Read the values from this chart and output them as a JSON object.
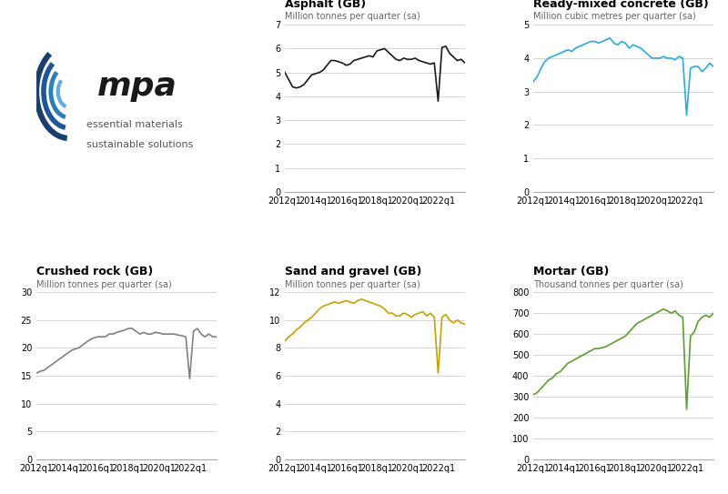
{
  "asphalt": {
    "title": "Asphalt (GB)",
    "ylabel": "Million tonnes per quarter (sa)",
    "color": "#1a1a1a",
    "ylim": [
      0,
      7
    ],
    "yticks": [
      0,
      1,
      2,
      3,
      4,
      5,
      6,
      7
    ],
    "values": [
      5.0,
      4.7,
      4.4,
      4.35,
      4.4,
      4.5,
      4.7,
      4.9,
      4.95,
      5.0,
      5.1,
      5.3,
      5.5,
      5.5,
      5.45,
      5.4,
      5.3,
      5.35,
      5.5,
      5.55,
      5.6,
      5.65,
      5.7,
      5.65,
      5.9,
      5.95,
      6.0,
      5.85,
      5.7,
      5.55,
      5.5,
      5.6,
      5.55,
      5.55,
      5.6,
      5.5,
      5.45,
      5.4,
      5.35,
      5.4,
      3.8,
      6.05,
      6.1,
      5.8,
      5.65,
      5.5,
      5.55,
      5.4
    ]
  },
  "concrete": {
    "title": "Ready-mixed concrete (GB)",
    "ylabel": "Million cubic metres per quarter (sa)",
    "color": "#29abe2",
    "ylim": [
      0,
      5
    ],
    "yticks": [
      0,
      1,
      2,
      3,
      4,
      5
    ],
    "values": [
      3.3,
      3.45,
      3.7,
      3.9,
      4.0,
      4.05,
      4.1,
      4.15,
      4.2,
      4.25,
      4.2,
      4.3,
      4.35,
      4.4,
      4.45,
      4.5,
      4.5,
      4.45,
      4.5,
      4.55,
      4.6,
      4.45,
      4.4,
      4.5,
      4.45,
      4.3,
      4.4,
      4.35,
      4.3,
      4.2,
      4.1,
      4.0,
      4.0,
      4.0,
      4.05,
      4.0,
      4.0,
      3.95,
      4.05,
      4.0,
      2.3,
      3.7,
      3.75,
      3.75,
      3.6,
      3.7,
      3.85,
      3.75
    ]
  },
  "crushed_rock": {
    "title": "Crushed rock (GB)",
    "ylabel": "Million tonnes per quarter (sa)",
    "color": "#808080",
    "ylim": [
      0,
      30
    ],
    "yticks": [
      0,
      5,
      10,
      15,
      20,
      25,
      30
    ],
    "values": [
      15.5,
      15.8,
      16.0,
      16.5,
      17.0,
      17.5,
      18.0,
      18.5,
      19.0,
      19.5,
      19.8,
      20.0,
      20.5,
      21.0,
      21.5,
      21.8,
      22.0,
      22.0,
      22.0,
      22.5,
      22.5,
      22.8,
      23.0,
      23.2,
      23.5,
      23.5,
      23.0,
      22.5,
      22.8,
      22.5,
      22.5,
      22.8,
      22.7,
      22.5,
      22.5,
      22.5,
      22.5,
      22.3,
      22.2,
      22.0,
      14.5,
      23.0,
      23.5,
      22.5,
      22.0,
      22.5,
      22.0,
      22.0
    ]
  },
  "sand_gravel": {
    "title": "Sand and gravel (GB)",
    "ylabel": "Million tonnes per quarter (sa)",
    "color": "#c8a000",
    "ylim": [
      0,
      12
    ],
    "yticks": [
      0,
      2,
      4,
      6,
      8,
      10,
      12
    ],
    "values": [
      8.5,
      8.8,
      9.0,
      9.3,
      9.5,
      9.8,
      10.0,
      10.2,
      10.5,
      10.8,
      11.0,
      11.1,
      11.2,
      11.3,
      11.2,
      11.3,
      11.4,
      11.3,
      11.2,
      11.4,
      11.5,
      11.4,
      11.3,
      11.2,
      11.1,
      11.0,
      10.8,
      10.5,
      10.5,
      10.3,
      10.3,
      10.5,
      10.4,
      10.2,
      10.4,
      10.5,
      10.6,
      10.3,
      10.5,
      10.2,
      6.2,
      10.2,
      10.4,
      10.0,
      9.8,
      10.0,
      9.8,
      9.7
    ]
  },
  "mortar": {
    "title": "Mortar (GB)",
    "ylabel": "Thousand tonnes per quarter (sa)",
    "color": "#5a9e2f",
    "ylim": [
      0,
      800
    ],
    "yticks": [
      0,
      100,
      200,
      300,
      400,
      500,
      600,
      700,
      800
    ],
    "values": [
      310,
      320,
      340,
      360,
      380,
      390,
      410,
      420,
      440,
      460,
      470,
      480,
      490,
      500,
      510,
      520,
      530,
      530,
      535,
      540,
      550,
      560,
      570,
      580,
      590,
      610,
      630,
      650,
      660,
      670,
      680,
      690,
      700,
      710,
      720,
      710,
      700,
      710,
      690,
      680,
      240,
      590,
      610,
      660,
      680,
      690,
      680,
      700
    ]
  },
  "x_labels": [
    "2012q1",
    "2014q1",
    "2016q1",
    "2018q1",
    "2020q1",
    "2022q1"
  ],
  "n_quarters": 48,
  "background_color": "#ffffff",
  "grid_color": "#cccccc",
  "title_fontsize": 9,
  "subtitle_fontsize": 7,
  "tick_fontsize": 7,
  "logo_arcs": [
    {
      "r": 0.18,
      "lw": 4.5,
      "color": "#1a3f6f",
      "theta1": 115,
      "theta2": 268
    },
    {
      "r": 0.14,
      "lw": 4.0,
      "color": "#1e5799",
      "theta1": 118,
      "theta2": 265
    },
    {
      "r": 0.1,
      "lw": 3.5,
      "color": "#2980b9",
      "theta1": 120,
      "theta2": 263
    },
    {
      "r": 0.06,
      "lw": 3.0,
      "color": "#5dade2",
      "theta1": 122,
      "theta2": 260
    }
  ]
}
